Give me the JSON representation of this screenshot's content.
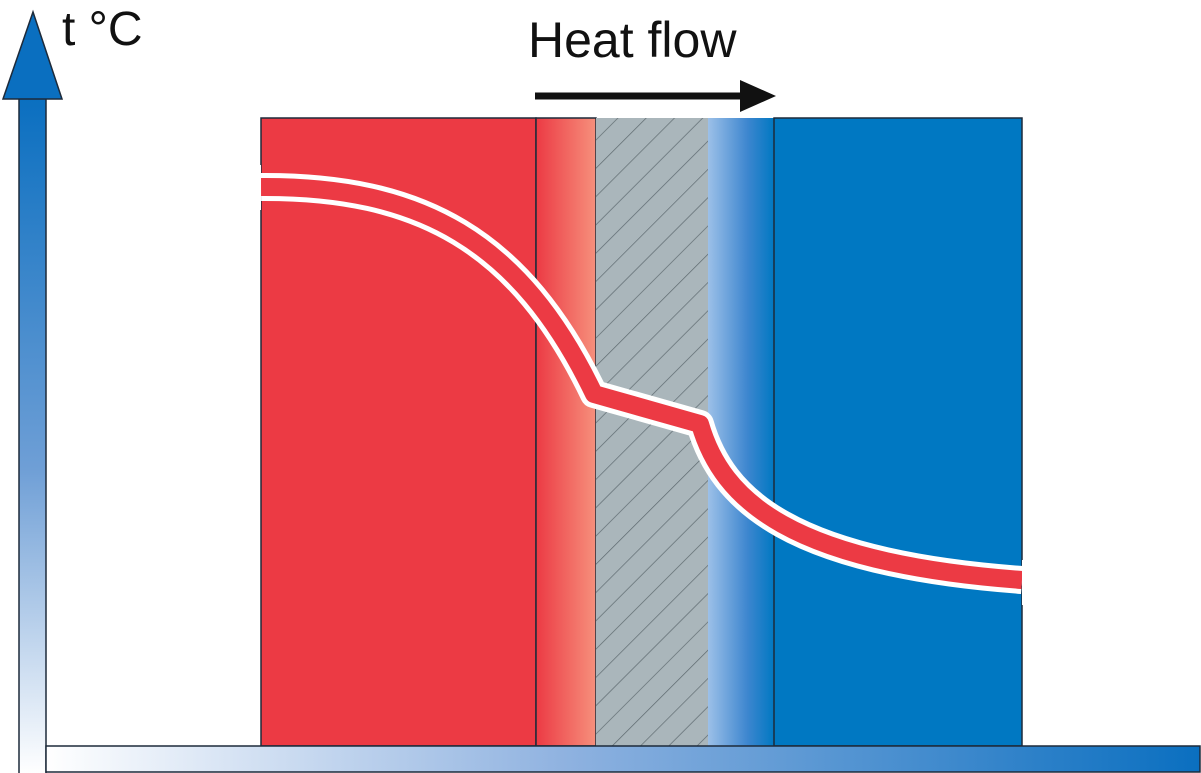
{
  "title": "Heat flow",
  "axis": {
    "y_label": "t °C"
  },
  "colors": {
    "hot": "#ec3a44",
    "cold": "#0078c2",
    "insulation": "#aab6bb",
    "hatch": "#5e6a70",
    "outline": "#1d2a3a",
    "arrow": "#111111",
    "curve_border": "#ffffff"
  },
  "layers": [
    "hot-region",
    "warm-boundary-layer",
    "insulation-layer",
    "cool-boundary-layer",
    "cold-region"
  ],
  "icons": [
    "heat-flow-arrow-icon",
    "y-axis-arrow-icon"
  ]
}
